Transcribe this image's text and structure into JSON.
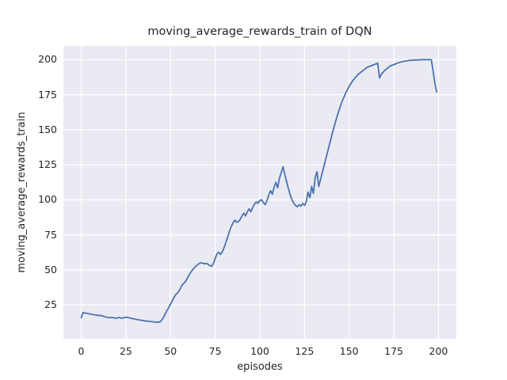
{
  "accent_colors": {
    "line": "#4C72B0",
    "axes_background": "#EAEAF2",
    "grid": "#FFFFFF",
    "text": "#262626",
    "figure_background": "#FFFFFF"
  },
  "chart_data": {
    "type": "line",
    "title": "moving_average_rewards_train of DQN",
    "xlabel": "episodes",
    "ylabel": "moving_average_rewards_train",
    "x_ticks": [
      0,
      25,
      50,
      75,
      100,
      125,
      150,
      175,
      200
    ],
    "y_ticks": [
      25,
      50,
      75,
      100,
      125,
      150,
      175,
      200
    ],
    "xlim": [
      -10,
      210
    ],
    "ylim": [
      0.76,
      209.84
    ],
    "grid": "on",
    "legend": "none",
    "series": [
      {
        "name": "moving_average_rewards_train",
        "x_start": 0,
        "x_step": 1,
        "values": [
          16,
          19.5,
          19.2,
          19,
          18.7,
          18.5,
          18.2,
          18,
          17.8,
          17.6,
          17.4,
          17.5,
          17,
          16.6,
          16.3,
          16,
          15.8,
          16.1,
          15.8,
          15.5,
          15.6,
          16,
          15.7,
          15.5,
          15.9,
          16.2,
          16,
          15.7,
          15.4,
          15.1,
          14.9,
          14.6,
          14.4,
          14.1,
          13.9,
          13.7,
          13.5,
          13.4,
          13.2,
          13.1,
          12.9,
          12.8,
          12.7,
          12.6,
          12.8,
          14,
          16,
          18.5,
          21,
          23,
          25.5,
          28,
          30.5,
          32.5,
          33.5,
          35.5,
          38,
          40,
          41,
          43,
          45.5,
          47.5,
          49.5,
          51,
          52.5,
          53.5,
          54.5,
          55,
          54.8,
          54.3,
          54.6,
          54,
          53,
          52.6,
          54.5,
          58,
          61.5,
          62.5,
          61,
          63,
          66,
          69.5,
          73.5,
          77.5,
          81,
          83.5,
          85.5,
          84,
          84.5,
          86,
          88.5,
          90.5,
          88.5,
          91.5,
          93.5,
          91.5,
          94.5,
          97,
          98.5,
          97.5,
          99.5,
          100,
          98,
          96.5,
          99.5,
          103.5,
          106.5,
          104,
          109,
          112.5,
          108.5,
          115.5,
          119.5,
          123.5,
          118,
          113,
          108,
          103.5,
          100,
          97.5,
          96,
          95,
          96.5,
          95.5,
          97.5,
          96,
          98.5,
          105.5,
          101.5,
          109.5,
          104.5,
          116,
          120,
          109.5,
          114.5,
          119.5,
          124.5,
          129.5,
          134.5,
          139.5,
          144.5,
          149.5,
          154,
          158.5,
          162.5,
          166.5,
          170,
          173,
          176,
          178.5,
          181,
          183,
          185,
          186.5,
          188,
          189.5,
          190.5,
          191.5,
          192.5,
          193.5,
          194.5,
          195,
          195.5,
          196,
          196.5,
          197,
          197.5,
          187,
          189.5,
          191,
          192.5,
          193.5,
          194.5,
          195.5,
          196,
          196.5,
          197,
          197.5,
          198,
          198.3,
          198.6,
          198.9,
          199.1,
          199.3,
          199.5,
          199.6,
          199.7,
          199.8,
          199.8,
          199.9,
          199.9,
          200,
          200,
          200,
          200,
          200,
          200,
          192,
          183,
          177
        ]
      }
    ]
  }
}
